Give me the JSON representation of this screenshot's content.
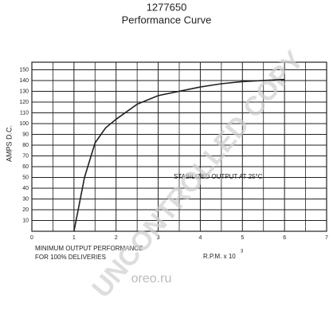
{
  "chart_data": {
    "type": "line",
    "title": "1277650",
    "subtitle": "Performance Curve",
    "y_label": "AMPS D.C.",
    "x_label": "R.P.M. x 10",
    "x_label_superscript": "3",
    "annotations": [
      "STABILIZED OUTPUT AT 25°C",
      "MINIMUM OUTPUT PERFORMANCE",
      "FOR 100% DELIVERIES"
    ],
    "watermark": "UNCONTROLLED COPY",
    "logo": "oreo.ru",
    "x": [
      1,
      1.25,
      1.5,
      1.75,
      2,
      2.5,
      3,
      3.5,
      4,
      4.5,
      5,
      5.5,
      6
    ],
    "series": [
      {
        "name": "Amps",
        "color": "#222222",
        "values": [
          0,
          50,
          82,
          96,
          104,
          118,
          126,
          130,
          134,
          137,
          139,
          140,
          141
        ]
      }
    ],
    "xlim": [
      0,
      7
    ],
    "xticks": [
      0,
      1,
      2,
      3,
      4,
      5,
      6,
      7
    ],
    "ylim": [
      0,
      157
    ],
    "yticks": [
      10,
      20,
      30,
      40,
      50,
      60,
      70,
      80,
      90,
      100,
      110,
      120,
      130,
      140,
      150
    ],
    "grid": true
  }
}
